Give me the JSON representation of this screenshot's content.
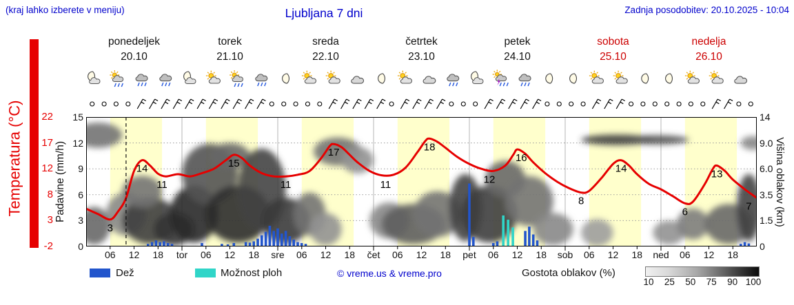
{
  "header": {
    "hint": "(kraj lahko izberete v meniju)",
    "title": "Ljubljana 7 dni",
    "updated": "Zadnja posodobitev: 20.10.2025 - 10:04"
  },
  "days": [
    {
      "name": "ponedeljek",
      "date": "20.10",
      "color": "#111111"
    },
    {
      "name": "torek",
      "date": "21.10",
      "color": "#111111"
    },
    {
      "name": "sreda",
      "date": "22.10",
      "color": "#111111"
    },
    {
      "name": "četrtek",
      "date": "23.10",
      "color": "#111111"
    },
    {
      "name": "petek",
      "date": "24.10",
      "color": "#111111"
    },
    {
      "name": "sobota",
      "date": "25.10",
      "color": "#cc0000"
    },
    {
      "name": "nedelja",
      "date": "26.10",
      "color": "#cc0000"
    }
  ],
  "bottom_axis": {
    "hour_labels": [
      "06",
      "12",
      "18"
    ],
    "day_abbrevs": [
      "tor",
      "sre",
      "čet",
      "pet",
      "sob",
      "ned"
    ]
  },
  "legend": {
    "rain": "Dež",
    "shower": "Možnost ploh",
    "copyright": "© vreme.us & vreme.pro",
    "cloud_density": "Gostota oblakov (%)",
    "colorbar_ticks": [
      "10",
      "25",
      "50",
      "75",
      "90",
      "100"
    ]
  },
  "colors": {
    "blue_text": "#0000cc",
    "weekend_red": "#cc0000",
    "temp_curve": "#e60000",
    "accent_bar": "#e60000",
    "rain": "#2255cc",
    "shower": "#30d5c8",
    "day_band": "#ffffcc"
  },
  "chart_data": {
    "type": "meteogram (line temperature + bar precipitation + cloud-cover shading)",
    "title": "Ljubljana 7 dni",
    "x_unit": "hours from Monday 00:00",
    "x_range_hours": [
      0,
      168
    ],
    "now_hour": 10,
    "day_band_hours": [
      6,
      19
    ],
    "axes": {
      "temperature": {
        "label": "Temperatura (°C)",
        "ticks": [
          "22",
          "17",
          "12",
          "8",
          "3",
          "-2"
        ],
        "range": [
          -2,
          22
        ]
      },
      "precip": {
        "label": "Padavine (mm/h)",
        "ticks": [
          "15",
          "12",
          "9",
          "6",
          "3",
          "0"
        ],
        "range": [
          0,
          15
        ]
      },
      "cloud_height": {
        "label": "Višina oblakov (km)",
        "ticks": [
          "14",
          "9.0",
          "6.0",
          "3.5",
          "1.5",
          "0"
        ],
        "stops_km": [
          0,
          1.5,
          3.5,
          6,
          9,
          14
        ]
      }
    },
    "temperature": {
      "points": [
        [
          0,
          5
        ],
        [
          3,
          4
        ],
        [
          6,
          3
        ],
        [
          8,
          4.5
        ],
        [
          10,
          7
        ],
        [
          12,
          12
        ],
        [
          14,
          14
        ],
        [
          16,
          13
        ],
        [
          18,
          11.5
        ],
        [
          20,
          11
        ],
        [
          23,
          11.4
        ],
        [
          26,
          11
        ],
        [
          29,
          11.6
        ],
        [
          32,
          12.4
        ],
        [
          35,
          14
        ],
        [
          37,
          15
        ],
        [
          39,
          14.4
        ],
        [
          41,
          13
        ],
        [
          44,
          11.6
        ],
        [
          47,
          11
        ],
        [
          50,
          11
        ],
        [
          53,
          11.3
        ],
        [
          56,
          12
        ],
        [
          59,
          14.5
        ],
        [
          61,
          16.6
        ],
        [
          62,
          17
        ],
        [
          64,
          16.4
        ],
        [
          66,
          15
        ],
        [
          68,
          13.6
        ],
        [
          71,
          12
        ],
        [
          74,
          11.2
        ],
        [
          77,
          11.3
        ],
        [
          80,
          12.6
        ],
        [
          83,
          15.5
        ],
        [
          85,
          17.6
        ],
        [
          86,
          18
        ],
        [
          88,
          17.4
        ],
        [
          90,
          16.3
        ],
        [
          93,
          14.6
        ],
        [
          96,
          13.3
        ],
        [
          99,
          12.4
        ],
        [
          102,
          12
        ],
        [
          105,
          13
        ],
        [
          107,
          15
        ],
        [
          108,
          16
        ],
        [
          110,
          15.2
        ],
        [
          112,
          13.6
        ],
        [
          115,
          11.6
        ],
        [
          118,
          10
        ],
        [
          121,
          8.8
        ],
        [
          124,
          8
        ],
        [
          126,
          8.3
        ],
        [
          129,
          10.6
        ],
        [
          132,
          13.3
        ],
        [
          134,
          14
        ],
        [
          136,
          13
        ],
        [
          138,
          11.4
        ],
        [
          141,
          9.6
        ],
        [
          144,
          8.6
        ],
        [
          147,
          7.3
        ],
        [
          150,
          6
        ],
        [
          152,
          6.3
        ],
        [
          155,
          9.6
        ],
        [
          157,
          12.4
        ],
        [
          158,
          13
        ],
        [
          160,
          12
        ],
        [
          162,
          10.4
        ],
        [
          165,
          8.6
        ],
        [
          168,
          7
        ]
      ]
    },
    "temperature_labels": [
      [
        6,
        3
      ],
      [
        14,
        14
      ],
      [
        19,
        11
      ],
      [
        37,
        15
      ],
      [
        50,
        11
      ],
      [
        62,
        17
      ],
      [
        75,
        11
      ],
      [
        86,
        18
      ],
      [
        101,
        12
      ],
      [
        109,
        16
      ],
      [
        124,
        8
      ],
      [
        134,
        14
      ],
      [
        150,
        6
      ],
      [
        158,
        13
      ],
      [
        166,
        7
      ]
    ],
    "rain_bars": [
      [
        15.5,
        0.3
      ],
      [
        16.5,
        0.5
      ],
      [
        17.5,
        0.7
      ],
      [
        18.5,
        0.5
      ],
      [
        19.5,
        0.6
      ],
      [
        20.5,
        0.4
      ],
      [
        21.5,
        0.3
      ],
      [
        29,
        0.4
      ],
      [
        34,
        0.3
      ],
      [
        35.5,
        0.25
      ],
      [
        37,
        0.4
      ],
      [
        40,
        0.5
      ],
      [
        41,
        0.45
      ],
      [
        42,
        0.6
      ],
      [
        43,
        0.9
      ],
      [
        44,
        1.3
      ],
      [
        45,
        1.7
      ],
      [
        46,
        2.4
      ],
      [
        47,
        1.8
      ],
      [
        48,
        2.1
      ],
      [
        49,
        1.5
      ],
      [
        50,
        1.8
      ],
      [
        51,
        1.2
      ],
      [
        52,
        0.8
      ],
      [
        53,
        0.5
      ],
      [
        54,
        0.4
      ],
      [
        55,
        0.3
      ],
      [
        96,
        7.3
      ],
      [
        97,
        1.1
      ],
      [
        102,
        0.4
      ],
      [
        103,
        0.6
      ],
      [
        110,
        1.8
      ],
      [
        111,
        2.3
      ],
      [
        112,
        1.4
      ],
      [
        113,
        0.7
      ],
      [
        164,
        0.3
      ],
      [
        165,
        0.5
      ],
      [
        166,
        0.35
      ]
    ],
    "shower_bars": [
      [
        104.5,
        3.6
      ],
      [
        105.7,
        3.1
      ],
      [
        106.9,
        2.2
      ]
    ],
    "cloud_blobs": [
      [
        3,
        10.5,
        6,
        2.2,
        55
      ],
      [
        2,
        1.2,
        4,
        1.2,
        60
      ],
      [
        10,
        2.0,
        5,
        1.5,
        45
      ],
      [
        16,
        1.5,
        7,
        1.6,
        80
      ],
      [
        14,
        3.8,
        5,
        1.4,
        55
      ],
      [
        22,
        1.0,
        5,
        1.0,
        85
      ],
      [
        27,
        2.0,
        6,
        2.0,
        90
      ],
      [
        31,
        5.5,
        7,
        3.0,
        70
      ],
      [
        36,
        7.5,
        5,
        1.5,
        60
      ],
      [
        38,
        2.0,
        8,
        2.0,
        88
      ],
      [
        44,
        4.0,
        6,
        3.5,
        78
      ],
      [
        50,
        1.5,
        6,
        1.5,
        82
      ],
      [
        56,
        2.0,
        4,
        1.5,
        55
      ],
      [
        60,
        1.0,
        4,
        1.0,
        40
      ],
      [
        63,
        8.0,
        6,
        1.8,
        55
      ],
      [
        68,
        7.0,
        4,
        1.5,
        40
      ],
      [
        76,
        1.5,
        5,
        1.2,
        45
      ],
      [
        82,
        1.3,
        8,
        1.3,
        65
      ],
      [
        88,
        2.0,
        6,
        1.6,
        55
      ],
      [
        95,
        2.5,
        4,
        2.5,
        78
      ],
      [
        101,
        2.0,
        7,
        2.0,
        80
      ],
      [
        105,
        5.0,
        5,
        1.8,
        60
      ],
      [
        111,
        3.0,
        6,
        2.0,
        55
      ],
      [
        117,
        1.0,
        5,
        1.0,
        45
      ],
      [
        128,
        0.8,
        4,
        0.8,
        35
      ],
      [
        133,
        9.6,
        9,
        0.9,
        80
      ],
      [
        143,
        9.6,
        8,
        0.8,
        72
      ],
      [
        146,
        0.8,
        4,
        0.7,
        40
      ],
      [
        152,
        1.3,
        4,
        1.0,
        50
      ],
      [
        161,
        1.3,
        6,
        1.3,
        60
      ],
      [
        166,
        2.5,
        3,
        2.5,
        78
      ],
      [
        167,
        9.0,
        3,
        1.0,
        45
      ]
    ],
    "wind_pattern": "oooo///////////ooooo/////o////ooo/////oooo///ooooooo//oo",
    "icons": [
      "moon-cloud",
      "sun-rain",
      "rain",
      "rain",
      "moon-cloud",
      "sun-cloud",
      "sun-rain",
      "rain",
      "moon",
      "sun-cloud",
      "sun-cloud",
      "cloud",
      "moon",
      "sun-cloud",
      "cloud",
      "rain",
      "moon-cloud",
      "storm",
      "rain",
      "moon",
      "moon",
      "sun-cloud",
      "sun-cloud",
      "moon",
      "moon",
      "sun-cloud",
      "sun-cloud",
      "cloud"
    ]
  }
}
